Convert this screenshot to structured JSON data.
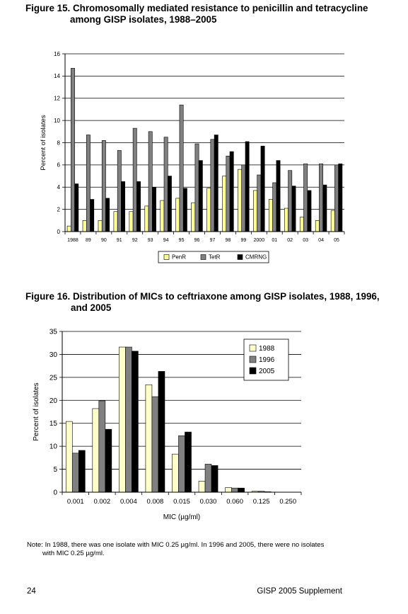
{
  "figure15": {
    "title_line1": "Figure 15. Chromosomally mediated resistance to penicillin and tetracycline",
    "title_line2": "among GISP isolates, 1988–2005"
  },
  "figure16": {
    "title_line1": "Figure 16. Distribution of MICs to ceftriaxone among GISP isolates, 1988, 1996,",
    "title_line2": "and 2005"
  },
  "note": {
    "line1": "Note: In 1988, there was one isolate with MIC 0.25 µg/ml. In 1996 and 2005, there were no isolates",
    "line2": "with MIC 0.25 µg/ml."
  },
  "footer": {
    "page_number": "24",
    "publication": "GISP 2005 Supplement"
  },
  "chart_data": [
    {
      "type": "bar",
      "categories": [
        "1988",
        "89",
        "90",
        "91",
        "92",
        "93",
        "94",
        "95",
        "96",
        "97",
        "98",
        "99",
        "2000",
        "01",
        "02",
        "03",
        "04",
        "05"
      ],
      "series": [
        {
          "name": "PenR",
          "color": "#ffff99",
          "values": [
            0.5,
            1.0,
            1.0,
            1.8,
            1.8,
            2.3,
            2.8,
            3.0,
            2.6,
            3.9,
            5.0,
            5.6,
            3.7,
            2.9,
            2.1,
            1.3,
            1.0,
            1.9
          ]
        },
        {
          "name": "TetR",
          "color": "#808080",
          "values": [
            14.7,
            8.7,
            8.2,
            7.3,
            9.3,
            9.0,
            8.5,
            11.4,
            7.9,
            8.3,
            6.8,
            6.0,
            5.1,
            4.4,
            5.5,
            6.1,
            6.1,
            6.0
          ]
        },
        {
          "name": "CMRNG",
          "color": "#000000",
          "values": [
            4.3,
            2.9,
            3.0,
            4.5,
            4.5,
            4.0,
            5.0,
            3.9,
            6.4,
            8.7,
            7.2,
            8.1,
            7.7,
            6.4,
            4.1,
            3.7,
            4.2,
            6.1
          ]
        }
      ],
      "title": "",
      "xlabel": "",
      "ylabel": "Percent of isolates",
      "ylim": [
        0,
        16
      ],
      "yticks": [
        "0",
        "2",
        "4",
        "6",
        "8",
        "10",
        "12",
        "14",
        "16"
      ],
      "grid": true,
      "legend": "bottom"
    },
    {
      "type": "bar",
      "categories": [
        "0.001",
        "0.002",
        "0.004",
        "0.008",
        "0.015",
        "0.030",
        "0.060",
        "0.125",
        "0.250"
      ],
      "series": [
        {
          "name": "1988",
          "color": "#ffffcc",
          "values": [
            15.4,
            18.2,
            31.6,
            23.4,
            8.3,
            2.4,
            1.0,
            0.2,
            0.0
          ]
        },
        {
          "name": "1996",
          "color": "#808080",
          "values": [
            8.5,
            19.9,
            31.6,
            20.8,
            12.3,
            6.1,
            0.9,
            0.2,
            0.0
          ]
        },
        {
          "name": "2005",
          "color": "#000000",
          "values": [
            9.1,
            13.7,
            30.7,
            26.3,
            13.1,
            5.8,
            0.9,
            0.1,
            0.0
          ]
        }
      ],
      "title": "",
      "xlabel": "MIC (µg/ml)",
      "ylabel": "Percent of isolates",
      "ylim": [
        0,
        35
      ],
      "yticks": [
        "0",
        "5",
        "10",
        "15",
        "20",
        "25",
        "30",
        "35"
      ],
      "grid": true,
      "legend": "top-right"
    }
  ]
}
